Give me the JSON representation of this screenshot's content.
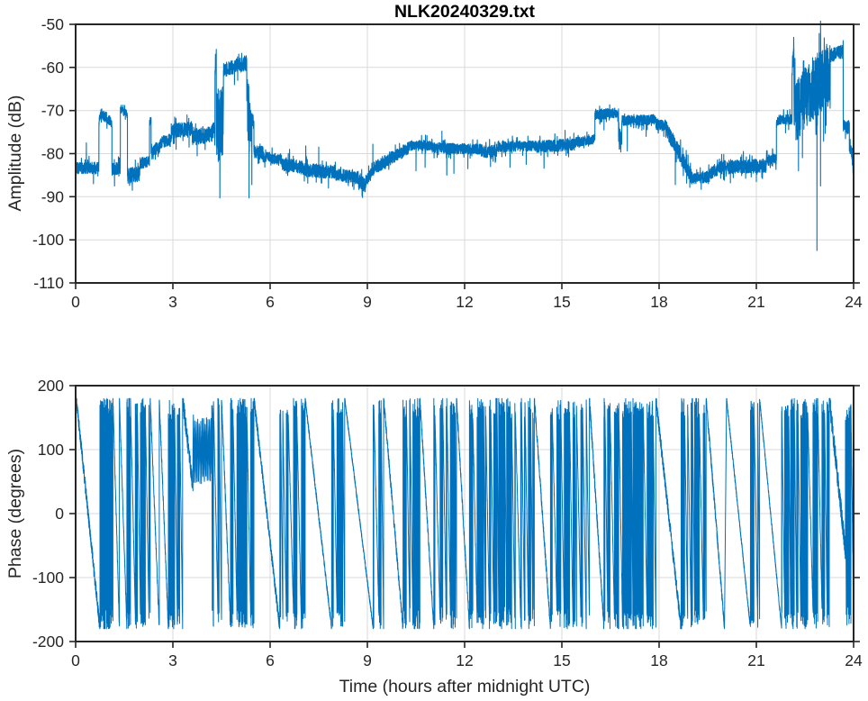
{
  "colors": {
    "line": "#0072BD",
    "grid": "#d9d9d9",
    "axis": "#262626",
    "background": "#ffffff"
  },
  "chart_data": [
    {
      "type": "line",
      "title": "NLK20240329.txt",
      "ylabel": "Amplitude (dB)",
      "xlabel": "",
      "xlim": [
        0,
        24
      ],
      "ylim": [
        -110,
        -50
      ],
      "xticks": [
        0,
        3,
        6,
        9,
        12,
        15,
        18,
        21,
        24
      ],
      "yticks": [
        -110,
        -100,
        -90,
        -80,
        -70,
        -60,
        -50
      ],
      "grid": true,
      "series_name": "amplitude-vs-time",
      "units": "dB",
      "segments": [
        {
          "t0": 0.0,
          "t1": 0.72,
          "v0": -83.5,
          "v1": -83.2,
          "n": 1.4,
          "spikes": [
            [
              0.33,
              -77.5
            ],
            [
              0.55,
              -87.0
            ]
          ]
        },
        {
          "t0": 0.72,
          "t1": 0.78,
          "v0": -72.5,
          "v1": -70.8,
          "n": 1.0
        },
        {
          "t0": 0.78,
          "t1": 1.12,
          "v0": -70.6,
          "v1": -72.8,
          "n": 1.2
        },
        {
          "t0": 1.12,
          "t1": 1.38,
          "v0": -83.6,
          "v1": -83.3,
          "n": 1.4,
          "spikes": [
            [
              1.2,
              -87.5
            ]
          ]
        },
        {
          "t0": 1.38,
          "t1": 1.6,
          "v0": -69.8,
          "v1": -70.8,
          "n": 0.9
        },
        {
          "t0": 1.6,
          "t1": 1.98,
          "v0": -85.2,
          "v1": -84.6,
          "n": 1.8,
          "spikes": [
            [
              1.75,
              -88.5
            ]
          ]
        },
        {
          "t0": 1.98,
          "t1": 2.28,
          "v0": -82.3,
          "v1": -81.8,
          "n": 1.4
        },
        {
          "t0": 2.28,
          "t1": 2.33,
          "v0": -73.0,
          "v1": -71.8,
          "n": 1.0
        },
        {
          "t0": 2.33,
          "t1": 2.6,
          "v0": -79.2,
          "v1": -78.6,
          "n": 1.4
        },
        {
          "t0": 2.6,
          "t1": 2.95,
          "v0": -77.6,
          "v1": -76.8,
          "n": 1.5
        },
        {
          "t0": 2.95,
          "t1": 3.6,
          "v0": -74.8,
          "v1": -74.2,
          "n": 1.7,
          "spikes": [
            [
              3.1,
              -79.0
            ],
            [
              3.5,
              -78.5
            ]
          ]
        },
        {
          "t0": 3.6,
          "t1": 4.12,
          "v0": -76.2,
          "v1": -75.6,
          "n": 1.9,
          "spikes": [
            [
              3.75,
              -80.5
            ]
          ]
        },
        {
          "t0": 4.12,
          "t1": 4.3,
          "v0": -75.8,
          "v1": -74.5,
          "n": 2.0
        },
        {
          "t0": 4.3,
          "t1": 4.34,
          "v0": -60.0,
          "v1": -57.0,
          "n": 2.0
        },
        {
          "t0": 4.34,
          "t1": 4.56,
          "v0": -74.0,
          "v1": -72.0,
          "n": 8.5,
          "spikes": [
            [
              4.45,
              -90.3
            ]
          ]
        },
        {
          "t0": 4.56,
          "t1": 5.28,
          "v0": -60.5,
          "v1": -59.0,
          "n": 1.8,
          "spikes": [
            [
              4.9,
              -64.0
            ],
            [
              5.0,
              -63.0
            ]
          ]
        },
        {
          "t0": 5.28,
          "t1": 5.44,
          "v0": -66.0,
          "v1": -80.0,
          "n": 8.0,
          "spikes": [
            [
              5.35,
              -90.3
            ]
          ]
        },
        {
          "t0": 5.44,
          "t1": 5.5,
          "v0": -71.5,
          "v1": -73.0,
          "n": 1.5
        },
        {
          "t0": 5.5,
          "t1": 5.78,
          "v0": -79.6,
          "v1": -79.8,
          "n": 1.5
        },
        {
          "t0": 5.78,
          "t1": 6.35,
          "v0": -80.8,
          "v1": -81.3,
          "n": 1.3
        },
        {
          "t0": 6.35,
          "t1": 7.0,
          "v0": -82.4,
          "v1": -83.2,
          "n": 1.5,
          "spikes": [
            [
              6.6,
              -79.0
            ]
          ]
        },
        {
          "t0": 7.0,
          "t1": 8.0,
          "v0": -83.8,
          "v1": -84.3,
          "n": 1.6,
          "spikes": [
            [
              7.1,
              -78.2
            ],
            [
              7.5,
              -78.5
            ],
            [
              7.8,
              -88.0
            ]
          ]
        },
        {
          "t0": 8.0,
          "t1": 8.72,
          "v0": -84.8,
          "v1": -85.6,
          "n": 1.5
        },
        {
          "t0": 8.72,
          "t1": 8.95,
          "v0": -86.5,
          "v1": -87.6,
          "n": 1.8,
          "spikes": [
            [
              8.85,
              -90.2
            ]
          ]
        },
        {
          "t0": 8.95,
          "t1": 9.2,
          "v0": -86.2,
          "v1": -83.8,
          "n": 1.5,
          "spikes": [
            [
              9.17,
              -77.8
            ]
          ]
        },
        {
          "t0": 9.2,
          "t1": 10.3,
          "v0": -83.4,
          "v1": -78.6,
          "n": 1.5
        },
        {
          "t0": 10.3,
          "t1": 11.0,
          "v0": -78.2,
          "v1": -78.0,
          "n": 1.2,
          "spikes": [
            [
              10.5,
              -84.0
            ],
            [
              10.78,
              -83.2
            ]
          ]
        },
        {
          "t0": 11.0,
          "t1": 12.5,
          "v0": -78.6,
          "v1": -79.0,
          "n": 1.2,
          "spikes": [
            [
              11.3,
              -74.8
            ],
            [
              11.45,
              -85.0
            ],
            [
              11.67,
              -84.6
            ],
            [
              12.1,
              -83.5
            ]
          ]
        },
        {
          "t0": 12.5,
          "t1": 13.0,
          "v0": -79.6,
          "v1": -79.3,
          "n": 1.4,
          "spikes": [
            [
              12.8,
              -83.0
            ]
          ]
        },
        {
          "t0": 13.0,
          "t1": 14.2,
          "v0": -78.4,
          "v1": -78.2,
          "n": 1.2,
          "spikes": [
            [
              13.4,
              -83.2
            ],
            [
              13.9,
              -82.5
            ]
          ]
        },
        {
          "t0": 14.2,
          "t1": 15.4,
          "v0": -78.4,
          "v1": -77.9,
          "n": 1.4,
          "spikes": [
            [
              14.45,
              -83.4
            ],
            [
              15.1,
              -74.6
            ]
          ]
        },
        {
          "t0": 15.4,
          "t1": 16.02,
          "v0": -77.4,
          "v1": -76.6,
          "n": 1.1
        },
        {
          "t0": 16.02,
          "t1": 16.75,
          "v0": -70.9,
          "v1": -70.6,
          "n": 1.2,
          "spikes": [
            [
              16.3,
              -74.5
            ]
          ]
        },
        {
          "t0": 16.75,
          "t1": 16.85,
          "v0": -75.5,
          "v1": -76.5,
          "n": 1.8
        },
        {
          "t0": 16.85,
          "t1": 17.9,
          "v0": -72.4,
          "v1": -72.1,
          "n": 1.2,
          "spikes": [
            [
              17.02,
              -79.4
            ],
            [
              17.6,
              -76.0
            ]
          ]
        },
        {
          "t0": 17.9,
          "t1": 18.22,
          "v0": -73.3,
          "v1": -73.7,
          "n": 1.4
        },
        {
          "t0": 18.22,
          "t1": 19.0,
          "v0": -74.2,
          "v1": -85.4,
          "n": 1.9,
          "spikes": [
            [
              18.5,
              -87.2
            ]
          ]
        },
        {
          "t0": 19.0,
          "t1": 19.55,
          "v0": -85.7,
          "v1": -85.3,
          "n": 1.4,
          "spikes": [
            [
              19.3,
              -88.3
            ]
          ]
        },
        {
          "t0": 19.55,
          "t1": 19.9,
          "v0": -84.6,
          "v1": -83.2,
          "n": 1.5
        },
        {
          "t0": 19.9,
          "t1": 21.3,
          "v0": -83.2,
          "v1": -82.8,
          "n": 1.6,
          "spikes": [
            [
              20.2,
              -86.8
            ],
            [
              20.6,
              -79.5
            ],
            [
              21.0,
              -86.5
            ]
          ]
        },
        {
          "t0": 21.3,
          "t1": 21.62,
          "v0": -81.7,
          "v1": -81.3,
          "n": 1.4
        },
        {
          "t0": 21.62,
          "t1": 22.1,
          "v0": -72.3,
          "v1": -72.0,
          "n": 1.2,
          "spikes": [
            [
              21.9,
              -75.2
            ]
          ]
        },
        {
          "t0": 22.1,
          "t1": 22.16,
          "v0": -62.0,
          "v1": -54.3,
          "n": 1.5
        },
        {
          "t0": 22.16,
          "t1": 22.6,
          "v0": -71.0,
          "v1": -66.0,
          "n": 7.0,
          "spikes": [
            [
              22.3,
              -84.0
            ],
            [
              22.45,
              -58.5
            ]
          ]
        },
        {
          "t0": 22.6,
          "t1": 23.28,
          "v0": -66.0,
          "v1": -61.0,
          "n": 7.5,
          "spikes": [
            [
              22.87,
              -102.5
            ],
            [
              22.98,
              -87.5
            ],
            [
              23.1,
              -56.5
            ]
          ]
        },
        {
          "t0": 23.28,
          "t1": 23.68,
          "v0": -57.2,
          "v1": -56.4,
          "n": 1.6
        },
        {
          "t0": 23.68,
          "t1": 23.87,
          "v0": -73.4,
          "v1": -73.8,
          "n": 1.6
        },
        {
          "t0": 23.87,
          "t1": 24.0,
          "v0": -78.5,
          "v1": -81.5,
          "n": 2.4
        }
      ]
    },
    {
      "type": "line",
      "title": "",
      "ylabel": "Phase (degrees)",
      "xlabel": "Time (hours after midnight UTC)",
      "xlim": [
        0,
        24
      ],
      "ylim": [
        -200,
        200
      ],
      "xticks": [
        0,
        3,
        6,
        9,
        12,
        15,
        18,
        21,
        24
      ],
      "yticks": [
        -200,
        -100,
        0,
        100,
        200
      ],
      "grid": true,
      "series_name": "phase-vs-time",
      "units": "degrees",
      "clip_level": 180,
      "segments": [
        {
          "type": "ramp",
          "t0": 0.02,
          "t1": 0.75,
          "from": 180,
          "to": -180,
          "n": 10
        },
        {
          "type": "dense",
          "t0": 0.75,
          "t1": 1.15,
          "n": 6
        },
        {
          "type": "ramp",
          "t0": 1.15,
          "t1": 1.35,
          "from": 180,
          "to": -180,
          "n": 6
        },
        {
          "type": "ramp",
          "t0": 1.35,
          "t1": 1.58,
          "from": 180,
          "to": -180,
          "n": 6
        },
        {
          "type": "dense",
          "t0": 1.58,
          "t1": 2.3,
          "n": 6
        },
        {
          "type": "ramp",
          "t0": 2.3,
          "t1": 2.58,
          "from": 180,
          "to": -180,
          "n": 7
        },
        {
          "type": "ramp",
          "t0": 2.58,
          "t1": 2.86,
          "from": 180,
          "to": -180,
          "n": 7
        },
        {
          "type": "dense",
          "t0": 2.86,
          "t1": 3.3,
          "n": 6
        },
        {
          "type": "ramp",
          "t0": 3.3,
          "t1": 3.62,
          "from": 180,
          "to": 40,
          "n": 14
        },
        {
          "type": "band",
          "t0": 3.62,
          "t1": 4.2,
          "center": 100,
          "amp": 45,
          "n": 10
        },
        {
          "type": "dense",
          "t0": 4.2,
          "t1": 4.5,
          "n": 6
        },
        {
          "type": "ramp",
          "t0": 4.5,
          "t1": 4.78,
          "from": 180,
          "to": -180,
          "n": 8
        },
        {
          "type": "dense",
          "t0": 4.78,
          "t1": 5.5,
          "n": 6
        },
        {
          "type": "ramp",
          "t0": 5.5,
          "t1": 6.3,
          "from": 180,
          "to": -180,
          "n": 9
        },
        {
          "type": "dense",
          "t0": 6.3,
          "t1": 7.08,
          "n": 6
        },
        {
          "type": "ramp",
          "t0": 7.08,
          "t1": 7.9,
          "from": 180,
          "to": -180,
          "n": 5
        },
        {
          "type": "dense",
          "t0": 7.9,
          "t1": 8.3,
          "n": 6
        },
        {
          "type": "ramp",
          "t0": 8.3,
          "t1": 9.18,
          "from": 180,
          "to": -180,
          "n": 4
        },
        {
          "type": "dense",
          "t0": 9.18,
          "t1": 9.5,
          "n": 6
        },
        {
          "type": "ramp",
          "t0": 9.5,
          "t1": 10.1,
          "from": 180,
          "to": -180,
          "n": 8
        },
        {
          "type": "dense",
          "t0": 10.1,
          "t1": 10.62,
          "n": 6
        },
        {
          "type": "ramp",
          "t0": 10.62,
          "t1": 11.05,
          "from": 180,
          "to": -180,
          "n": 7
        },
        {
          "type": "dense",
          "t0": 11.05,
          "t1": 11.75,
          "n": 6
        },
        {
          "type": "ramp",
          "t0": 11.75,
          "t1": 12.15,
          "from": 180,
          "to": -180,
          "n": 8
        },
        {
          "type": "dense",
          "t0": 12.15,
          "t1": 14.15,
          "n": 6
        },
        {
          "type": "ramp",
          "t0": 14.15,
          "t1": 14.65,
          "from": 180,
          "to": -180,
          "n": 8
        },
        {
          "type": "dense",
          "t0": 14.65,
          "t1": 15.85,
          "n": 6
        },
        {
          "type": "ramp",
          "t0": 15.85,
          "t1": 16.3,
          "from": 180,
          "to": -180,
          "n": 9
        },
        {
          "type": "dense",
          "t0": 16.3,
          "t1": 17.9,
          "n": 6
        },
        {
          "type": "ramp",
          "t0": 17.9,
          "t1": 18.68,
          "from": 180,
          "to": -180,
          "n": 10
        },
        {
          "type": "dense",
          "t0": 18.68,
          "t1": 19.45,
          "n": 6
        },
        {
          "type": "ramp",
          "t0": 19.45,
          "t1": 20.02,
          "from": 180,
          "to": -180,
          "n": 8
        },
        {
          "type": "ramp",
          "t0": 20.08,
          "t1": 20.82,
          "from": 180,
          "to": -180,
          "n": 4
        },
        {
          "type": "dense",
          "t0": 20.82,
          "t1": 21.1,
          "n": 6
        },
        {
          "type": "ramp",
          "t0": 21.1,
          "t1": 21.78,
          "from": 180,
          "to": -180,
          "n": 4
        },
        {
          "type": "dense",
          "t0": 21.78,
          "t1": 23.25,
          "n": 6
        },
        {
          "type": "ramp",
          "t0": 23.25,
          "t1": 23.75,
          "from": 180,
          "to": -60,
          "n": 16
        },
        {
          "type": "dense",
          "t0": 23.75,
          "t1": 24.0,
          "n": 8
        }
      ]
    }
  ]
}
